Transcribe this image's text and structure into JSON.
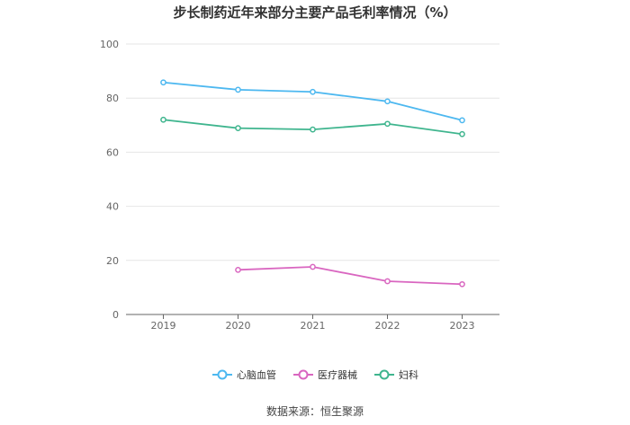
{
  "title": "步长制药近年来部分主要产品毛利率情况（%）",
  "source": "数据来源：恒生聚源",
  "colors": {
    "axis": "#666666",
    "grid": "#e6e6e6"
  },
  "chart_data": {
    "type": "line",
    "title": "步长制药近年来部分主要产品毛利率情况（%）",
    "xlabel": "",
    "ylabel": "",
    "x": [
      "2019",
      "2020",
      "2021",
      "2022",
      "2023"
    ],
    "ylim": [
      0,
      100
    ],
    "yticks": [
      "0",
      "20",
      "40",
      "60",
      "80",
      "100"
    ],
    "grid": true,
    "legend_position": "bottom",
    "series": [
      {
        "name": "心脑血管",
        "color": "#4db8f0",
        "values": [
          85.8,
          83.1,
          82.3,
          78.8,
          71.8
        ]
      },
      {
        "name": "医疗器械",
        "color": "#d966c0",
        "values": [
          null,
          16.5,
          17.6,
          12.3,
          11.2
        ]
      },
      {
        "name": "妇科",
        "color": "#3fb58e",
        "values": [
          72.0,
          68.9,
          68.4,
          70.5,
          66.7
        ]
      }
    ]
  }
}
